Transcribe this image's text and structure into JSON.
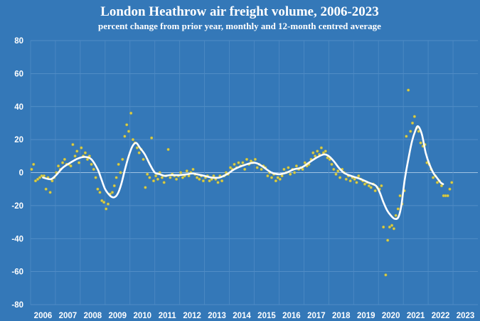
{
  "chart_data": {
    "type": "line",
    "title": "London Heathrow air freight volume, 2006-2023",
    "subtitle": "percent change from prior year, monthly and 12-month centred average",
    "ylim": [
      -80,
      80
    ],
    "yticks": [
      80,
      60,
      40,
      20,
      0,
      -20,
      -40,
      -60,
      -80
    ],
    "xlim": [
      2006,
      2024
    ],
    "xticks": [
      "2006",
      "2007",
      "2008",
      "2009",
      "2010",
      "2011",
      "2012",
      "2013",
      "2014",
      "2015",
      "2016",
      "2017",
      "2018",
      "2019",
      "2020",
      "2021",
      "2022",
      "2023"
    ],
    "grid": true,
    "series": [
      {
        "type": "scatter",
        "color": "#d6cc4e",
        "points": [
          [
            2006.04,
            2
          ],
          [
            2006.12,
            5
          ],
          [
            2006.2,
            -5
          ],
          [
            2006.29,
            -4
          ],
          [
            2006.37,
            -3
          ],
          [
            2006.45,
            -2
          ],
          [
            2006.54,
            -2
          ],
          [
            2006.62,
            -10
          ],
          [
            2006.7,
            -3
          ],
          [
            2006.79,
            -12
          ],
          [
            2006.87,
            -5
          ],
          [
            2006.95,
            -3
          ],
          [
            2007.04,
            0
          ],
          [
            2007.12,
            4
          ],
          [
            2007.2,
            2
          ],
          [
            2007.29,
            6
          ],
          [
            2007.37,
            8
          ],
          [
            2007.45,
            5
          ],
          [
            2007.54,
            5
          ],
          [
            2007.62,
            4
          ],
          [
            2007.7,
            17
          ],
          [
            2007.79,
            10
          ],
          [
            2007.87,
            13
          ],
          [
            2007.95,
            6
          ],
          [
            2008.04,
            15
          ],
          [
            2008.12,
            10
          ],
          [
            2008.2,
            12
          ],
          [
            2008.29,
            8
          ],
          [
            2008.37,
            10
          ],
          [
            2008.45,
            5
          ],
          [
            2008.54,
            2
          ],
          [
            2008.62,
            -3
          ],
          [
            2008.7,
            -10
          ],
          [
            2008.79,
            -12
          ],
          [
            2008.87,
            -17
          ],
          [
            2008.95,
            -18
          ],
          [
            2009.04,
            -22
          ],
          [
            2009.12,
            -19
          ],
          [
            2009.2,
            -13
          ],
          [
            2009.29,
            -12
          ],
          [
            2009.37,
            -8
          ],
          [
            2009.45,
            -3
          ],
          [
            2009.54,
            5
          ],
          [
            2009.62,
            0
          ],
          [
            2009.7,
            8
          ],
          [
            2009.79,
            22
          ],
          [
            2009.87,
            29
          ],
          [
            2009.95,
            25
          ],
          [
            2010.04,
            36
          ],
          [
            2010.12,
            20
          ],
          [
            2010.2,
            18
          ],
          [
            2010.29,
            15
          ],
          [
            2010.37,
            12
          ],
          [
            2010.45,
            14
          ],
          [
            2010.54,
            8
          ],
          [
            2010.62,
            -9
          ],
          [
            2010.7,
            -1
          ],
          [
            2010.79,
            -3
          ],
          [
            2010.87,
            21
          ],
          [
            2010.95,
            -5
          ],
          [
            2011.04,
            -2
          ],
          [
            2011.12,
            -4
          ],
          [
            2011.2,
            0
          ],
          [
            2011.29,
            -3
          ],
          [
            2011.37,
            -6
          ],
          [
            2011.45,
            -2
          ],
          [
            2011.54,
            14
          ],
          [
            2011.62,
            -3
          ],
          [
            2011.7,
            -1
          ],
          [
            2011.79,
            -2
          ],
          [
            2011.87,
            -4
          ],
          [
            2011.95,
            -2
          ],
          [
            2012.04,
            0
          ],
          [
            2012.12,
            -3
          ],
          [
            2012.2,
            -2
          ],
          [
            2012.29,
            1
          ],
          [
            2012.37,
            -2
          ],
          [
            2012.45,
            0
          ],
          [
            2012.54,
            2
          ],
          [
            2012.62,
            -1
          ],
          [
            2012.7,
            -3
          ],
          [
            2012.79,
            -4
          ],
          [
            2012.87,
            -2
          ],
          [
            2012.95,
            -5
          ],
          [
            2013.04,
            -3
          ],
          [
            2013.12,
            -2
          ],
          [
            2013.2,
            -5
          ],
          [
            2013.29,
            -4
          ],
          [
            2013.37,
            -2
          ],
          [
            2013.45,
            -4
          ],
          [
            2013.54,
            -6
          ],
          [
            2013.62,
            -2
          ],
          [
            2013.7,
            -5
          ],
          [
            2013.79,
            -2
          ],
          [
            2013.87,
            0
          ],
          [
            2013.95,
            -1
          ],
          [
            2014.04,
            3
          ],
          [
            2014.12,
            2
          ],
          [
            2014.2,
            5
          ],
          [
            2014.29,
            3
          ],
          [
            2014.37,
            6
          ],
          [
            2014.45,
            4
          ],
          [
            2014.54,
            6
          ],
          [
            2014.62,
            2
          ],
          [
            2014.7,
            8
          ],
          [
            2014.79,
            5
          ],
          [
            2014.87,
            7
          ],
          [
            2014.95,
            6
          ],
          [
            2015.04,
            8
          ],
          [
            2015.12,
            3
          ],
          [
            2015.2,
            5
          ],
          [
            2015.29,
            2
          ],
          [
            2015.37,
            4
          ],
          [
            2015.45,
            3
          ],
          [
            2015.54,
            -2
          ],
          [
            2015.62,
            0
          ],
          [
            2015.7,
            -3
          ],
          [
            2015.79,
            -1
          ],
          [
            2015.87,
            -5
          ],
          [
            2015.95,
            -3
          ],
          [
            2016.04,
            -4
          ],
          [
            2016.12,
            -2
          ],
          [
            2016.2,
            2
          ],
          [
            2016.29,
            0
          ],
          [
            2016.37,
            3
          ],
          [
            2016.45,
            -1
          ],
          [
            2016.54,
            2
          ],
          [
            2016.62,
            0
          ],
          [
            2016.7,
            4
          ],
          [
            2016.79,
            2
          ],
          [
            2016.87,
            3
          ],
          [
            2016.95,
            2
          ],
          [
            2017.04,
            6
          ],
          [
            2017.12,
            4
          ],
          [
            2017.2,
            5
          ],
          [
            2017.29,
            8
          ],
          [
            2017.37,
            12
          ],
          [
            2017.45,
            10
          ],
          [
            2017.54,
            13
          ],
          [
            2017.62,
            11
          ],
          [
            2017.7,
            15
          ],
          [
            2017.79,
            12
          ],
          [
            2017.87,
            13
          ],
          [
            2017.95,
            9
          ],
          [
            2018.04,
            8
          ],
          [
            2018.12,
            5
          ],
          [
            2018.2,
            2
          ],
          [
            2018.29,
            -1
          ],
          [
            2018.37,
            1
          ],
          [
            2018.45,
            -3
          ],
          [
            2018.54,
            2
          ],
          [
            2018.62,
            0
          ],
          [
            2018.7,
            -4
          ],
          [
            2018.79,
            -2
          ],
          [
            2018.87,
            -5
          ],
          [
            2018.95,
            -3
          ],
          [
            2019.04,
            -4
          ],
          [
            2019.12,
            -6
          ],
          [
            2019.2,
            -2
          ],
          [
            2019.29,
            -4
          ],
          [
            2019.37,
            -5
          ],
          [
            2019.45,
            -7
          ],
          [
            2019.54,
            -6
          ],
          [
            2019.62,
            -8
          ],
          [
            2019.7,
            -9
          ],
          [
            2019.79,
            -7
          ],
          [
            2019.87,
            -11
          ],
          [
            2019.95,
            -9
          ],
          [
            2020.04,
            -10
          ],
          [
            2020.12,
            -8
          ],
          [
            2020.2,
            -33
          ],
          [
            2020.29,
            -62
          ],
          [
            2020.37,
            -41
          ],
          [
            2020.45,
            -33
          ],
          [
            2020.54,
            -32
          ],
          [
            2020.62,
            -34
          ],
          [
            2020.7,
            -26
          ],
          [
            2020.79,
            -22
          ],
          [
            2020.87,
            -14
          ],
          [
            2020.95,
            -19
          ],
          [
            2021.04,
            -11
          ],
          [
            2021.12,
            22
          ],
          [
            2021.2,
            50
          ],
          [
            2021.29,
            25
          ],
          [
            2021.37,
            30
          ],
          [
            2021.45,
            34
          ],
          [
            2021.54,
            27
          ],
          [
            2021.62,
            25
          ],
          [
            2021.7,
            18
          ],
          [
            2021.79,
            16
          ],
          [
            2021.87,
            17
          ],
          [
            2021.95,
            6
          ],
          [
            2022.04,
            5
          ],
          [
            2022.12,
            2
          ],
          [
            2022.2,
            -3
          ],
          [
            2022.29,
            -2
          ],
          [
            2022.37,
            -6
          ],
          [
            2022.45,
            -5
          ],
          [
            2022.54,
            -8
          ],
          [
            2022.62,
            -14
          ],
          [
            2022.7,
            -14
          ],
          [
            2022.79,
            -14
          ],
          [
            2022.87,
            -10
          ],
          [
            2022.95,
            -6
          ]
        ]
      },
      {
        "type": "line",
        "color": "#ffffff",
        "points": [
          [
            2006.5,
            -3
          ],
          [
            2006.8,
            -4
          ],
          [
            2007.0,
            -2
          ],
          [
            2007.3,
            3
          ],
          [
            2007.6,
            6
          ],
          [
            2007.9,
            8.5
          ],
          [
            2008.2,
            9.5
          ],
          [
            2008.45,
            8
          ],
          [
            2008.7,
            2
          ],
          [
            2008.85,
            -4
          ],
          [
            2009.0,
            -10
          ],
          [
            2009.2,
            -14
          ],
          [
            2009.35,
            -15
          ],
          [
            2009.5,
            -13
          ],
          [
            2009.65,
            -7
          ],
          [
            2009.8,
            2
          ],
          [
            2009.95,
            10
          ],
          [
            2010.1,
            16
          ],
          [
            2010.25,
            18
          ],
          [
            2010.4,
            15
          ],
          [
            2010.6,
            11
          ],
          [
            2010.8,
            5
          ],
          [
            2011.0,
            0
          ],
          [
            2011.2,
            -1
          ],
          [
            2011.4,
            -2
          ],
          [
            2011.6,
            -1.5
          ],
          [
            2011.8,
            -1.5
          ],
          [
            2012.0,
            -1.5
          ],
          [
            2012.3,
            -1
          ],
          [
            2012.5,
            -0.5
          ],
          [
            2012.7,
            -1
          ],
          [
            2013.0,
            -2
          ],
          [
            2013.3,
            -3
          ],
          [
            2013.6,
            -3
          ],
          [
            2013.9,
            -1
          ],
          [
            2014.2,
            2
          ],
          [
            2014.5,
            4
          ],
          [
            2014.8,
            5.5
          ],
          [
            2015.0,
            6
          ],
          [
            2015.2,
            5
          ],
          [
            2015.4,
            3
          ],
          [
            2015.7,
            0
          ],
          [
            2016.0,
            -1
          ],
          [
            2016.3,
            0
          ],
          [
            2016.6,
            2
          ],
          [
            2016.9,
            3
          ],
          [
            2017.2,
            6
          ],
          [
            2017.5,
            9
          ],
          [
            2017.8,
            11
          ],
          [
            2018.0,
            10
          ],
          [
            2018.2,
            7
          ],
          [
            2018.4,
            3
          ],
          [
            2018.6,
            0
          ],
          [
            2018.8,
            -1.5
          ],
          [
            2019.0,
            -2.5
          ],
          [
            2019.3,
            -4
          ],
          [
            2019.6,
            -6
          ],
          [
            2019.9,
            -8
          ],
          [
            2020.05,
            -12
          ],
          [
            2020.2,
            -18
          ],
          [
            2020.35,
            -23
          ],
          [
            2020.5,
            -26
          ],
          [
            2020.65,
            -28
          ],
          [
            2020.8,
            -27
          ],
          [
            2020.92,
            -20
          ],
          [
            2021.05,
            -5
          ],
          [
            2021.2,
            8
          ],
          [
            2021.35,
            19
          ],
          [
            2021.5,
            26
          ],
          [
            2021.6,
            28
          ],
          [
            2021.75,
            23
          ],
          [
            2021.9,
            12
          ],
          [
            2022.05,
            5
          ],
          [
            2022.2,
            0
          ],
          [
            2022.35,
            -3
          ],
          [
            2022.5,
            -6
          ],
          [
            2022.6,
            -7
          ]
        ]
      }
    ]
  }
}
